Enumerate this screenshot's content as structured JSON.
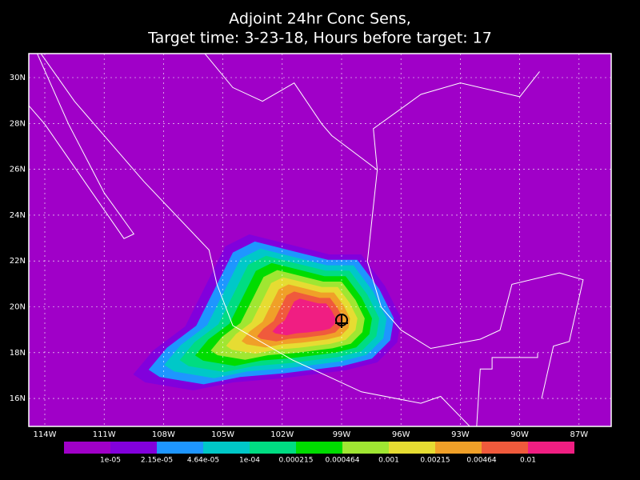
{
  "title": [
    "Adjoint 24hr Conc Sens,",
    "Target time: 3-23-18, Hours before target: 17"
  ],
  "map": {
    "background": "#a000c8",
    "lat_labels": [
      "30N",
      "28N",
      "26N",
      "24N",
      "22N",
      "20N",
      "18N",
      "16N"
    ],
    "lon_labels": [
      "114W",
      "111W",
      "108W",
      "105W",
      "102W",
      "99W",
      "96W",
      "93W",
      "90W",
      "87W"
    ]
  },
  "colorbar": {
    "colors": [
      "#a000c8",
      "#8200dc",
      "#1e96ff",
      "#00c8c8",
      "#00dc82",
      "#00dc00",
      "#a0e632",
      "#e6dc32",
      "#f0a028",
      "#f05a3c",
      "#f01e82"
    ],
    "labels": [
      "1e-05",
      "2.15e-05",
      "4.64e-05",
      "1e-04",
      "0.000215",
      "0.000464",
      "0.001",
      "0.00215",
      "0.00464",
      "0.01"
    ]
  }
}
